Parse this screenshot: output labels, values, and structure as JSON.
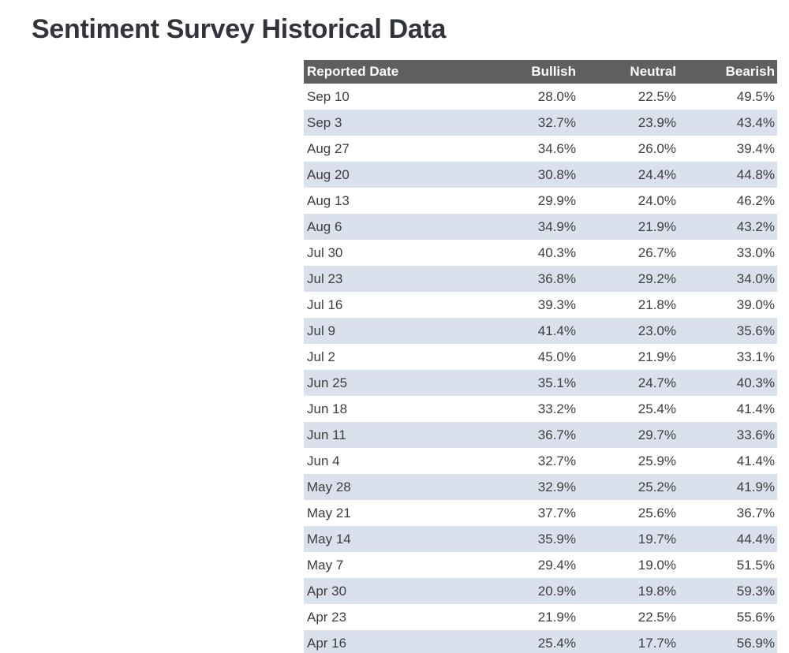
{
  "page": {
    "title": "Sentiment Survey Historical Data"
  },
  "chart_data": {
    "type": "table",
    "title": "Sentiment Survey Historical Data",
    "columns": [
      "Reported Date",
      "Bullish",
      "Neutral",
      "Bearish"
    ],
    "rows": [
      [
        "Sep 10",
        "28.0%",
        "22.5%",
        "49.5%"
      ],
      [
        "Sep 3",
        "32.7%",
        "23.9%",
        "43.4%"
      ],
      [
        "Aug 27",
        "34.6%",
        "26.0%",
        "39.4%"
      ],
      [
        "Aug 20",
        "30.8%",
        "24.4%",
        "44.8%"
      ],
      [
        "Aug 13",
        "29.9%",
        "24.0%",
        "46.2%"
      ],
      [
        "Aug 6",
        "34.9%",
        "21.9%",
        "43.2%"
      ],
      [
        "Jul 30",
        "40.3%",
        "26.7%",
        "33.0%"
      ],
      [
        "Jul 23",
        "36.8%",
        "29.2%",
        "34.0%"
      ],
      [
        "Jul 16",
        "39.3%",
        "21.8%",
        "39.0%"
      ],
      [
        "Jul 9",
        "41.4%",
        "23.0%",
        "35.6%"
      ],
      [
        "Jul 2",
        "45.0%",
        "21.9%",
        "33.1%"
      ],
      [
        "Jun 25",
        "35.1%",
        "24.7%",
        "40.3%"
      ],
      [
        "Jun 18",
        "33.2%",
        "25.4%",
        "41.4%"
      ],
      [
        "Jun 11",
        "36.7%",
        "29.7%",
        "33.6%"
      ],
      [
        "Jun 4",
        "32.7%",
        "25.9%",
        "41.4%"
      ],
      [
        "May 28",
        "32.9%",
        "25.2%",
        "41.9%"
      ],
      [
        "May 21",
        "37.7%",
        "25.6%",
        "36.7%"
      ],
      [
        "May 14",
        "35.9%",
        "19.7%",
        "44.4%"
      ],
      [
        "May 7",
        "29.4%",
        "19.0%",
        "51.5%"
      ],
      [
        "Apr 30",
        "20.9%",
        "19.8%",
        "59.3%"
      ],
      [
        "Apr 23",
        "21.9%",
        "22.5%",
        "55.6%"
      ],
      [
        "Apr 16",
        "25.4%",
        "17.7%",
        "56.9%"
      ]
    ],
    "layout": {
      "banded_rows": true,
      "band_start": "second_data_row",
      "value_alignment": "right",
      "date_alignment": "left",
      "value_format": "percent_one_decimal"
    }
  },
  "colors": {
    "background": "#ffffff",
    "title_text": "#31353b",
    "header_bg": "#5f5f5f",
    "header_text": "#ffffff",
    "body_text": "#3d3d3d",
    "band_row_bg": "#dbe0ed"
  }
}
